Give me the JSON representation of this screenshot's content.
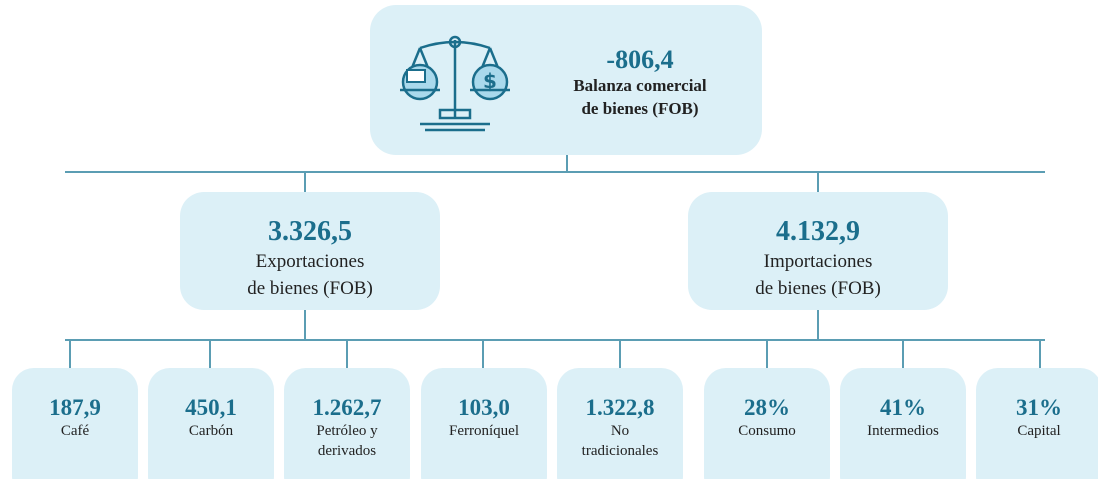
{
  "top": {
    "value": "-806,4",
    "label": [
      "Balanza comercial",
      "de bienes (FOB)"
    ]
  },
  "middle": [
    {
      "value": "3.326,5",
      "label": [
        "Exportaciones",
        "de bienes (FOB)"
      ]
    },
    {
      "value": "4.132,9",
      "label": [
        "Importaciones",
        "de bienes (FOB)"
      ]
    }
  ],
  "bottom": [
    {
      "value": "187,9",
      "label": [
        "Café"
      ]
    },
    {
      "value": "450,1",
      "label": [
        "Carbón"
      ]
    },
    {
      "value": "1.262,7",
      "label": [
        "Petróleo y",
        "derivados"
      ]
    },
    {
      "value": "103,0",
      "label": [
        "Ferroníquel"
      ]
    },
    {
      "value": "1.322,8",
      "label": [
        "No",
        "tradicionales"
      ]
    },
    {
      "value": "28%",
      "label": [
        "Consumo"
      ]
    },
    {
      "value": "41%",
      "label": [
        "Intermedios"
      ]
    },
    {
      "value": "31%",
      "label": [
        "Capital"
      ]
    }
  ]
}
